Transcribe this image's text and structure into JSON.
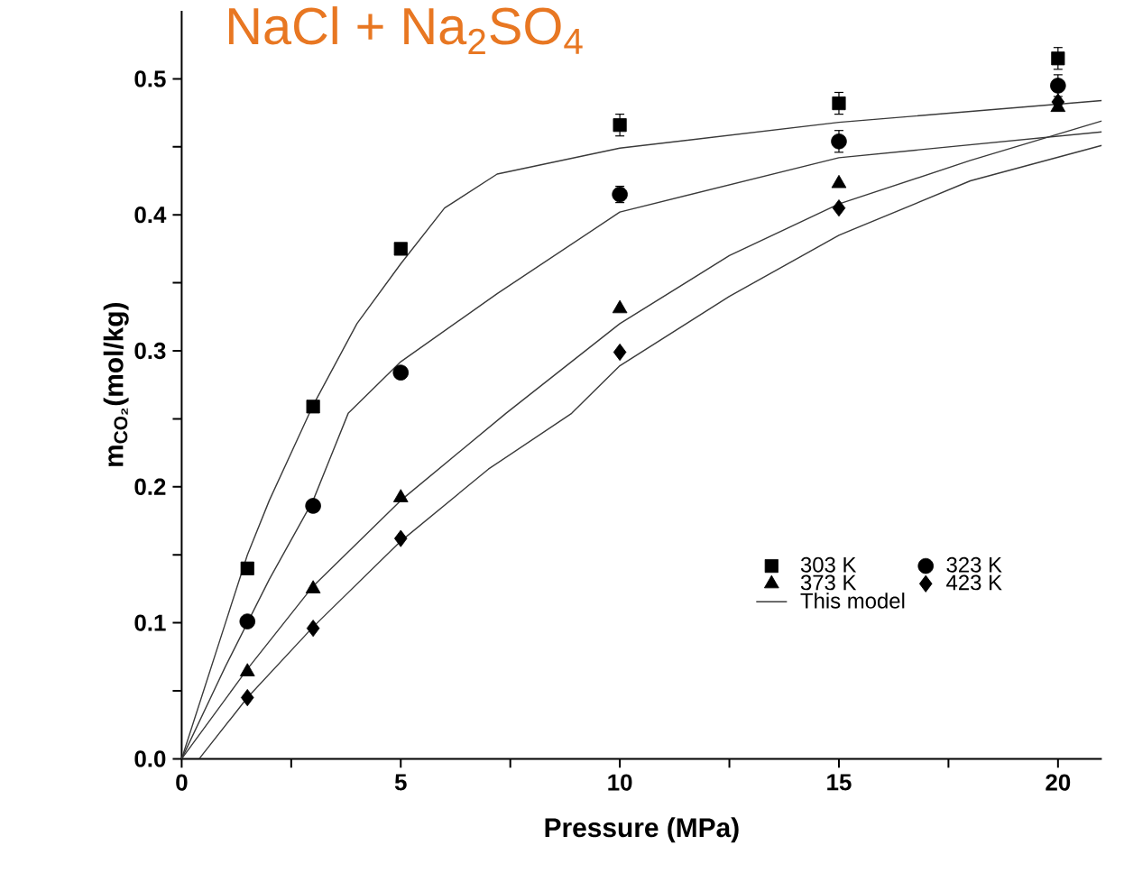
{
  "chart_data": {
    "type": "scatter",
    "title": "NaCl + Na$_{2}$SO$_{4}$",
    "xlabel": "Pressure (MPa)",
    "ylabel": "m$_{CO₂}$(mol/kg)",
    "xlim": [
      0,
      21
    ],
    "ylim": [
      0,
      0.55
    ],
    "xticks": [
      0,
      {
        "value": 2.5,
        "label": null
      },
      5,
      {
        "value": 7.5,
        "label": null
      },
      10,
      {
        "value": 12.5,
        "label": null
      },
      15,
      {
        "value": 17.5,
        "label": null
      },
      20
    ],
    "yticks": [
      {
        "value": 0,
        "label": "0.0"
      },
      {
        "value": 0.05,
        "label": null
      },
      {
        "value": 0.1,
        "label": "0.1"
      },
      {
        "value": 0.15,
        "label": null
      },
      {
        "value": 0.2,
        "label": "0.2"
      },
      {
        "value": 0.25,
        "label": null
      },
      {
        "value": 0.3,
        "label": "0.3"
      },
      {
        "value": 0.35,
        "label": null
      },
      {
        "value": 0.4,
        "label": "0.4"
      },
      {
        "value": 0.45,
        "label": null
      },
      {
        "value": 0.5,
        "label": "0.5"
      }
    ],
    "legend": "bottom right",
    "grid": false,
    "series": [
      {
        "name": "303 K",
        "marker": "square",
        "color": "#000000",
        "x": [
          1.5,
          3,
          5,
          10,
          15,
          20
        ],
        "values": [
          0.14,
          0.259,
          0.375,
          0.466,
          0.482,
          0.515
        ],
        "errors": [
          null,
          null,
          null,
          0.008,
          0.008,
          0.008
        ]
      },
      {
        "name": "323 K",
        "marker": "circle",
        "color": "#000000",
        "x": [
          1.5,
          3,
          5,
          10,
          15,
          20
        ],
        "values": [
          0.101,
          0.186,
          0.284,
          0.415,
          0.454,
          0.495
        ],
        "errors": [
          null,
          null,
          null,
          0.006,
          0.008,
          0.008
        ]
      },
      {
        "name": "373 K",
        "marker": "triangle",
        "color": "#000000",
        "x": [
          1.5,
          3,
          5,
          10,
          15,
          20
        ],
        "values": [
          0.064,
          0.125,
          0.192,
          0.331,
          0.423,
          0.479
        ]
      },
      {
        "name": "423 K",
        "marker": "diamond",
        "color": "#000000",
        "x": [
          1.5,
          3,
          5,
          10,
          15,
          20
        ],
        "values": [
          0.045,
          0.096,
          0.162,
          0.299,
          0.405,
          0.483
        ]
      },
      {
        "name": "This model",
        "type": "line",
        "marker": "none",
        "color": "#3a3a3a",
        "x": [
          0,
          1,
          1.5,
          2,
          3,
          4,
          5,
          6,
          7.2,
          10,
          15,
          21
        ],
        "values": [
          0,
          0.1,
          0.15,
          0.19,
          0.26,
          0.32,
          0.364,
          0.405,
          0.43,
          0.449,
          0.468,
          0.484
        ]
      },
      {
        "type": "line",
        "marker": "none",
        "color": "#3a3a3a",
        "x": [
          0,
          1,
          1.5,
          2,
          3,
          3.8,
          5,
          7.2,
          10,
          15,
          21
        ],
        "values": [
          0,
          0.068,
          0.1,
          0.132,
          0.19,
          0.254,
          0.292,
          0.342,
          0.402,
          0.442,
          0.461
        ]
      },
      {
        "type": "line",
        "marker": "none",
        "color": "#3a3a3a",
        "x": [
          0,
          1.5,
          3,
          5,
          7.4,
          10,
          12.5,
          15,
          18,
          21
        ],
        "values": [
          0,
          0.066,
          0.127,
          0.19,
          0.254,
          0.32,
          0.37,
          0.408,
          0.44,
          0.469
        ]
      },
      {
        "type": "line",
        "marker": "none",
        "color": "#3a3a3a",
        "x": [
          0.4,
          1.5,
          3,
          5,
          7,
          8.9,
          10,
          12.5,
          15,
          18,
          21
        ],
        "values": [
          0,
          0.045,
          0.097,
          0.16,
          0.213,
          0.254,
          0.289,
          0.34,
          0.385,
          0.425,
          0.451
        ]
      }
    ]
  }
}
